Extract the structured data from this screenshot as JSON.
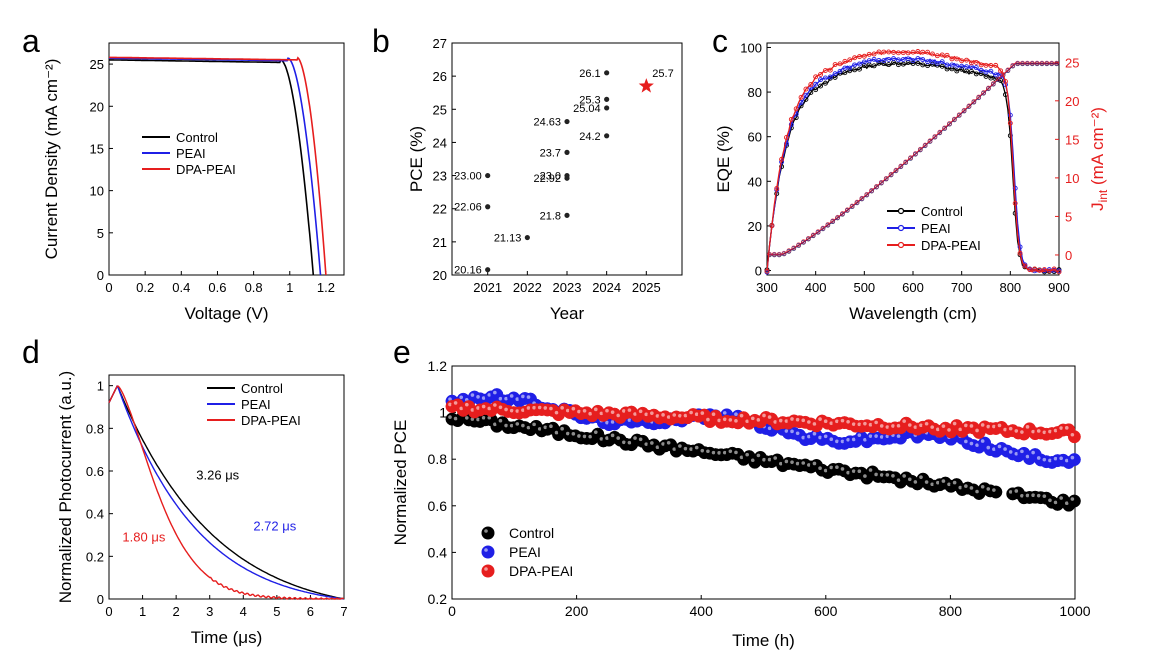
{
  "colors": {
    "control": "#000000",
    "peai": "#1f1fe6",
    "dpa": "#e61e1e",
    "axis": "#000000"
  },
  "panels": {
    "a": {
      "letter": "a",
      "xlabel": "Voltage (V)",
      "ylabel": "Current Density (mA cm⁻²)"
    },
    "b": {
      "letter": "b",
      "xlabel": "Year",
      "ylabel": "PCE (%)"
    },
    "c": {
      "letter": "c",
      "xlabel": "Wavelength (cm)",
      "ylabel": "EQE (%)",
      "ylabel2_main": "J",
      "ylabel2_sub": "int",
      "ylabel2_rest": " (mA cm⁻²)"
    },
    "d": {
      "letter": "d",
      "xlabel": "Time (μs)",
      "ylabel": "Normalized Photocurrent (a.u.)"
    },
    "e": {
      "letter": "e",
      "xlabel": "Time (h)",
      "ylabel": "Normalized PCE"
    }
  },
  "chart_data": [
    {
      "id": "a",
      "type": "line",
      "xlabel": "Voltage (V)",
      "ylabel": "Current Density (mA cm-2)",
      "xlim": [
        0,
        1.3
      ],
      "ylim": [
        0,
        27.5
      ],
      "xticks": [
        "0",
        "0.2",
        "0.4",
        "0.6",
        "0.8",
        "1",
        "1.2"
      ],
      "yticks": [
        "0",
        "5",
        "10",
        "15",
        "20",
        "25"
      ],
      "legend": "center-left",
      "series": [
        {
          "name": "Control",
          "color": "#000000",
          "jsc": 25.5,
          "voc": 1.13,
          "knee": 0.95
        },
        {
          "name": "PEAI",
          "color": "#1f1fe6",
          "jsc": 25.7,
          "voc": 1.17,
          "knee": 0.99
        },
        {
          "name": "DPA-PEAI",
          "color": "#e61e1e",
          "jsc": 25.8,
          "voc": 1.2,
          "knee": 1.04
        }
      ]
    },
    {
      "id": "b",
      "type": "scatter",
      "xlabel": "Year",
      "ylabel": "PCE (%)",
      "xlim": [
        2020.1,
        2025.9
      ],
      "ylim": [
        20,
        27
      ],
      "xticks": [
        "2021",
        "2022",
        "2023",
        "2024",
        "2025"
      ],
      "yticks": [
        "20",
        "21",
        "22",
        "23",
        "24",
        "25",
        "26",
        "27"
      ],
      "points": [
        {
          "x": 2021,
          "y": 23.0,
          "label": "23.00",
          "side": "left"
        },
        {
          "x": 2021,
          "y": 22.06,
          "label": "22.06",
          "side": "left"
        },
        {
          "x": 2021,
          "y": 20.16,
          "label": "20.16",
          "side": "left"
        },
        {
          "x": 2022,
          "y": 21.13,
          "label": "21.13",
          "side": "left"
        },
        {
          "x": 2023,
          "y": 24.63,
          "label": "24.63",
          "side": "left"
        },
        {
          "x": 2023,
          "y": 23.7,
          "label": "23.7",
          "side": "left"
        },
        {
          "x": 2023,
          "y": 23.0,
          "label": "23.0",
          "side": "left"
        },
        {
          "x": 2023,
          "y": 22.92,
          "label": "22.92",
          "side": "left"
        },
        {
          "x": 2023,
          "y": 21.8,
          "label": "21.8",
          "side": "left"
        },
        {
          "x": 2024,
          "y": 26.1,
          "label": "26.1",
          "side": "left"
        },
        {
          "x": 2024,
          "y": 25.3,
          "label": "25.3",
          "side": "left"
        },
        {
          "x": 2024,
          "y": 25.04,
          "label": "25.04",
          "side": "left"
        },
        {
          "x": 2024,
          "y": 24.2,
          "label": "24.2",
          "side": "left"
        }
      ],
      "highlight": {
        "x": 2025,
        "y": 25.7,
        "label": "25.7",
        "marker": "star",
        "color": "#e61e1e"
      }
    },
    {
      "id": "c",
      "type": "line",
      "xlabel": "Wavelength (cm)",
      "ylabel": "EQE (%)",
      "ylabel_right": "Jint (mA cm-2)",
      "xlim": [
        300,
        900
      ],
      "ylim": [
        -2,
        102
      ],
      "ylim_right": [
        -2.6,
        27.5
      ],
      "xticks": [
        "300",
        "400",
        "500",
        "600",
        "700",
        "800",
        "900"
      ],
      "yticks": [
        "0",
        "20",
        "40",
        "60",
        "80",
        "100"
      ],
      "yticks_right": [
        "0",
        "5",
        "10",
        "15",
        "20",
        "25"
      ],
      "legend": "lower-right",
      "series": [
        {
          "name": "Control",
          "color": "#000000",
          "plateau": 89,
          "edge": 805
        },
        {
          "name": "PEAI",
          "color": "#1f1fe6",
          "plateau": 91,
          "edge": 808
        },
        {
          "name": "DPA-PEAI",
          "color": "#e61e1e",
          "plateau": 94,
          "edge": 806
        }
      ]
    },
    {
      "id": "d",
      "type": "line",
      "xlabel": "Time (μs)",
      "ylabel": "Normalized Photocurrent (a.u.)",
      "xlim": [
        0,
        7
      ],
      "ylim": [
        0,
        1.05
      ],
      "xticks": [
        "0",
        "1",
        "2",
        "3",
        "4",
        "5",
        "6",
        "7"
      ],
      "yticks": [
        "0",
        "0.2",
        "0.4",
        "0.6",
        "0.8",
        "1"
      ],
      "legend": "top-right",
      "series": [
        {
          "name": "Control",
          "color": "#000000",
          "tau_label": "3.26 μs",
          "label_x": 2.6,
          "label_y": 0.56
        },
        {
          "name": "PEAI",
          "color": "#1f1fe6",
          "tau_label": "2.72 μs",
          "label_x": 4.3,
          "label_y": 0.32
        },
        {
          "name": "DPA-PEAI",
          "color": "#e61e1e",
          "tau_label": "1.80 μs",
          "label_x": 0.4,
          "label_y": 0.27
        }
      ]
    },
    {
      "id": "e",
      "type": "scatter",
      "xlabel": "Time (h)",
      "ylabel": "Normalized PCE",
      "xlim": [
        0,
        1000
      ],
      "ylim": [
        0.2,
        1.2
      ],
      "xticks": [
        "0",
        "200",
        "400",
        "600",
        "800",
        "1000"
      ],
      "yticks": [
        "0.2",
        "0.4",
        "0.6",
        "0.8",
        "1",
        "1.2"
      ],
      "legend": "lower-left",
      "series": [
        {
          "name": "Control",
          "color": "#000000",
          "start": 0.98,
          "end": 0.61
        },
        {
          "name": "PEAI",
          "color": "#1f1fe6",
          "start": 1.05,
          "end": 0.82
        },
        {
          "name": "DPA-PEAI",
          "color": "#e61e1e",
          "start": 1.02,
          "end": 0.91
        }
      ]
    }
  ]
}
